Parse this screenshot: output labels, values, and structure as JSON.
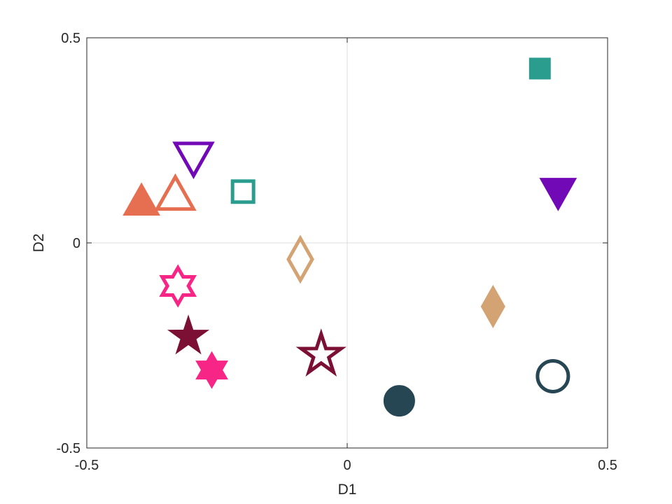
{
  "chart_data": {
    "type": "scatter",
    "title": "",
    "xlabel": "D1",
    "ylabel": "D2",
    "xlim": [
      -0.5,
      0.5
    ],
    "ylim": [
      -0.5,
      0.5
    ],
    "xticks": [
      -0.5,
      0,
      0.5
    ],
    "yticks": [
      -0.5,
      0,
      0.5
    ],
    "xtick_labels": [
      "-0.5",
      "0",
      "0.5"
    ],
    "ytick_labels": [
      "-0.5",
      "0",
      "0.5"
    ],
    "zero_lines": true,
    "grid": false,
    "legend": "none",
    "points": [
      {
        "x": 0.37,
        "y": 0.425,
        "marker": "square",
        "filled": true,
        "color": "#2a9d8f"
      },
      {
        "x": -0.2,
        "y": 0.125,
        "marker": "square",
        "filled": false,
        "color": "#2a9d8f"
      },
      {
        "x": -0.295,
        "y": 0.205,
        "marker": "triangle-down",
        "filled": false,
        "color": "#7209b7"
      },
      {
        "x": 0.405,
        "y": 0.12,
        "marker": "triangle-down",
        "filled": true,
        "color": "#7209b7"
      },
      {
        "x": -0.395,
        "y": 0.105,
        "marker": "triangle-up",
        "filled": true,
        "color": "#e76f51"
      },
      {
        "x": -0.33,
        "y": 0.12,
        "marker": "triangle-up",
        "filled": false,
        "color": "#e76f51"
      },
      {
        "x": -0.09,
        "y": -0.04,
        "marker": "diamond",
        "filled": false,
        "color": "#d4a373"
      },
      {
        "x": 0.28,
        "y": -0.155,
        "marker": "diamond",
        "filled": true,
        "color": "#d4a373"
      },
      {
        "x": -0.325,
        "y": -0.105,
        "marker": "hexagram",
        "filled": false,
        "color": "#f72585"
      },
      {
        "x": -0.26,
        "y": -0.31,
        "marker": "hexagram",
        "filled": true,
        "color": "#f72585"
      },
      {
        "x": -0.305,
        "y": -0.225,
        "marker": "pentagram",
        "filled": true,
        "color": "#7b1034"
      },
      {
        "x": -0.05,
        "y": -0.27,
        "marker": "pentagram",
        "filled": false,
        "color": "#7b1034"
      },
      {
        "x": 0.1,
        "y": -0.385,
        "marker": "circle",
        "filled": true,
        "color": "#264653"
      },
      {
        "x": 0.395,
        "y": -0.325,
        "marker": "circle",
        "filled": false,
        "color": "#264653"
      }
    ]
  }
}
